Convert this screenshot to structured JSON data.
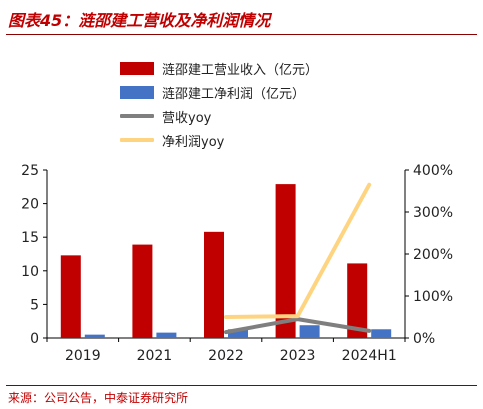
{
  "title": "图表45：涟邵建工营收及净利润情况",
  "source": "来源：公司公告，中泰证券研究所",
  "legend": [
    {
      "label": "涟邵建工营业收入（亿元）",
      "kind": "bar",
      "color": "#c00000"
    },
    {
      "label": "涟邵建工净利润（亿元）",
      "kind": "bar",
      "color": "#4472c4"
    },
    {
      "label": "营收yoy",
      "kind": "line",
      "color": "#7f7f7f"
    },
    {
      "label": "净利润yoy",
      "kind": "line",
      "color": "#ffd480"
    }
  ],
  "chart_data": {
    "type": "bar",
    "categories": [
      "2019",
      "2021",
      "2022",
      "2023",
      "2024H1"
    ],
    "series": [
      {
        "name": "涟邵建工营业收入（亿元）",
        "type": "bar",
        "axis": "left",
        "color": "#c00000",
        "values": [
          12.3,
          13.9,
          15.8,
          22.9,
          11.1
        ]
      },
      {
        "name": "涟邵建工净利润（亿元）",
        "type": "bar",
        "axis": "left",
        "color": "#4472c4",
        "values": [
          0.5,
          0.8,
          1.3,
          1.9,
          1.3
        ]
      },
      {
        "name": "营收yoy",
        "type": "line",
        "axis": "right",
        "color": "#7f7f7f",
        "values": [
          null,
          null,
          14,
          45,
          17
        ]
      },
      {
        "name": "净利润yoy",
        "type": "line",
        "axis": "right",
        "color": "#ffd480",
        "values": [
          null,
          null,
          50,
          52,
          365
        ]
      }
    ],
    "ylim": [
      0,
      25
    ],
    "yticks": [
      0,
      5,
      10,
      15,
      20,
      25
    ],
    "y2lim": [
      0,
      400
    ],
    "y2ticks": [
      0,
      100,
      200,
      300,
      400
    ],
    "y2ticklabels": [
      "0%",
      "100%",
      "200%",
      "300%",
      "400%"
    ],
    "grid": false,
    "legend_position": "top-center"
  }
}
